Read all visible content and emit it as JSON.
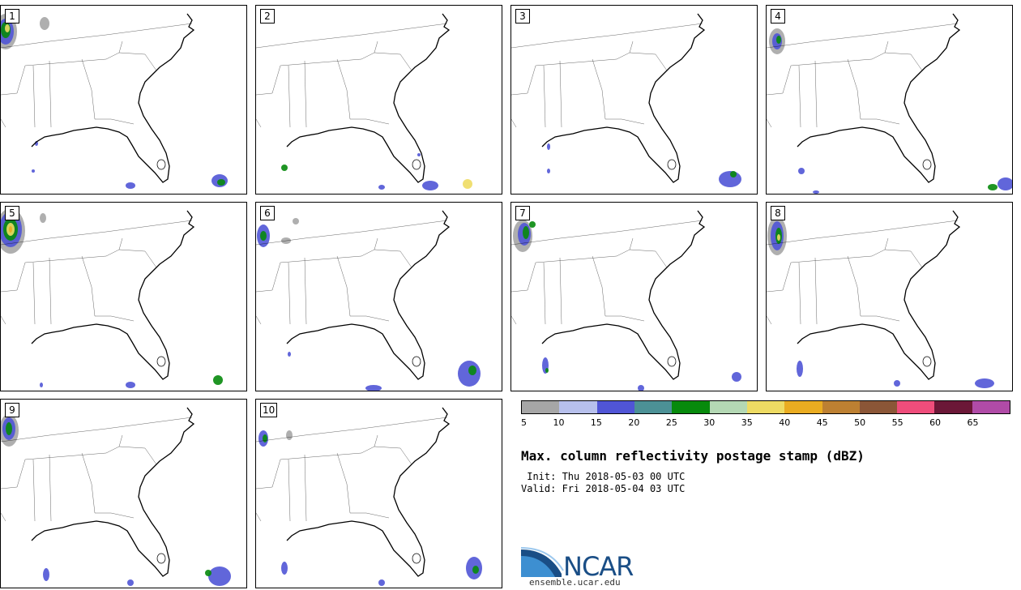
{
  "panels": [
    {
      "label": "1"
    },
    {
      "label": "2"
    },
    {
      "label": "3"
    },
    {
      "label": "4"
    },
    {
      "label": "5"
    },
    {
      "label": "6"
    },
    {
      "label": "7"
    },
    {
      "label": "8"
    },
    {
      "label": "9"
    },
    {
      "label": "10"
    }
  ],
  "colorbar": {
    "ticks": [
      "5",
      "10",
      "15",
      "20",
      "25",
      "30",
      "35",
      "40",
      "45",
      "50",
      "55",
      "60",
      "65"
    ],
    "colors": [
      "#a6a6a6",
      "#b7c0ec",
      "#5055d6",
      "#4c9196",
      "#078a0c",
      "#b4d8b4",
      "#eedb63",
      "#eaac21",
      "#bd8032",
      "#8b5637",
      "#ef4d7b",
      "#6b1737",
      "#b04ba7"
    ]
  },
  "title": "Max. column reflectivity postage stamp (dBZ)",
  "init": " Init: Thu 2018-05-03 00 UTC",
  "valid": "Valid: Fri 2018-05-04 03 UTC",
  "logo": {
    "name": "NCAR",
    "url": "ensemble.ucar.edu"
  }
}
